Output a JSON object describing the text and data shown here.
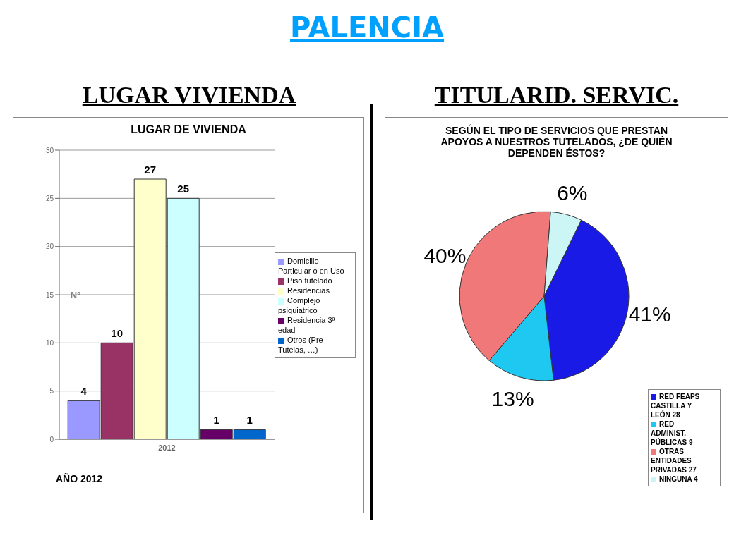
{
  "chart_data": [
    {
      "type": "other",
      "title": "PALENCIA"
    },
    {
      "type": "bar",
      "title": "LUGAR VIVIENDA",
      "subtitle": "LUGAR DE VIVIENDA",
      "ylabel": "Nº",
      "categories": [
        "2012"
      ],
      "series": [
        {
          "name": "Domicilio Particular o en Uso",
          "color": "#9999ff",
          "values": [
            4
          ]
        },
        {
          "name": "Piso tutelado",
          "color": "#993366",
          "values": [
            10
          ]
        },
        {
          "name": "Residencias",
          "color": "#ffffcc",
          "values": [
            27
          ]
        },
        {
          "name": "Complejo psiquiatrico",
          "color": "#ccffff",
          "values": [
            25
          ]
        },
        {
          "name": "Residencia 3ª edad",
          "color": "#660066",
          "values": [
            1
          ]
        },
        {
          "name": "Otros (Pre-Tutelas, …)",
          "color": "#0066cc",
          "values": [
            1
          ]
        }
      ],
      "ylim": [
        0,
        30
      ],
      "yticks": [
        0,
        5,
        10,
        15,
        20,
        25,
        30
      ],
      "grid": "y",
      "legend": "right",
      "data_labels": true,
      "annotations": [
        "AÑO 2012"
      ]
    },
    {
      "type": "pie",
      "title": "TITULARID. SERVIC.",
      "subtitle": "SEGÚN EL TIPO DE SERVICIOS QUE PRESTAN APOYOS A NUESTROS TUTELADOS, ¿DE QUIÉN DEPENDEN ÉSTOS?",
      "categories": [
        "RED FEAPS CASTILLA Y LEÓN 28",
        "RED ADMINIST. PÚBLICAS 9",
        "OTRAS ENTIDADES PRIVADAS 27",
        "NINGUNA 4"
      ],
      "values": [
        41,
        13,
        40,
        6
      ],
      "colors": [
        "#1a1ae6",
        "#1ec8f0",
        "#f07878",
        "#ccf5f5"
      ],
      "value_labels": [
        "41%",
        "13%",
        "40%",
        "6%"
      ],
      "legend": "bottom right"
    }
  ]
}
